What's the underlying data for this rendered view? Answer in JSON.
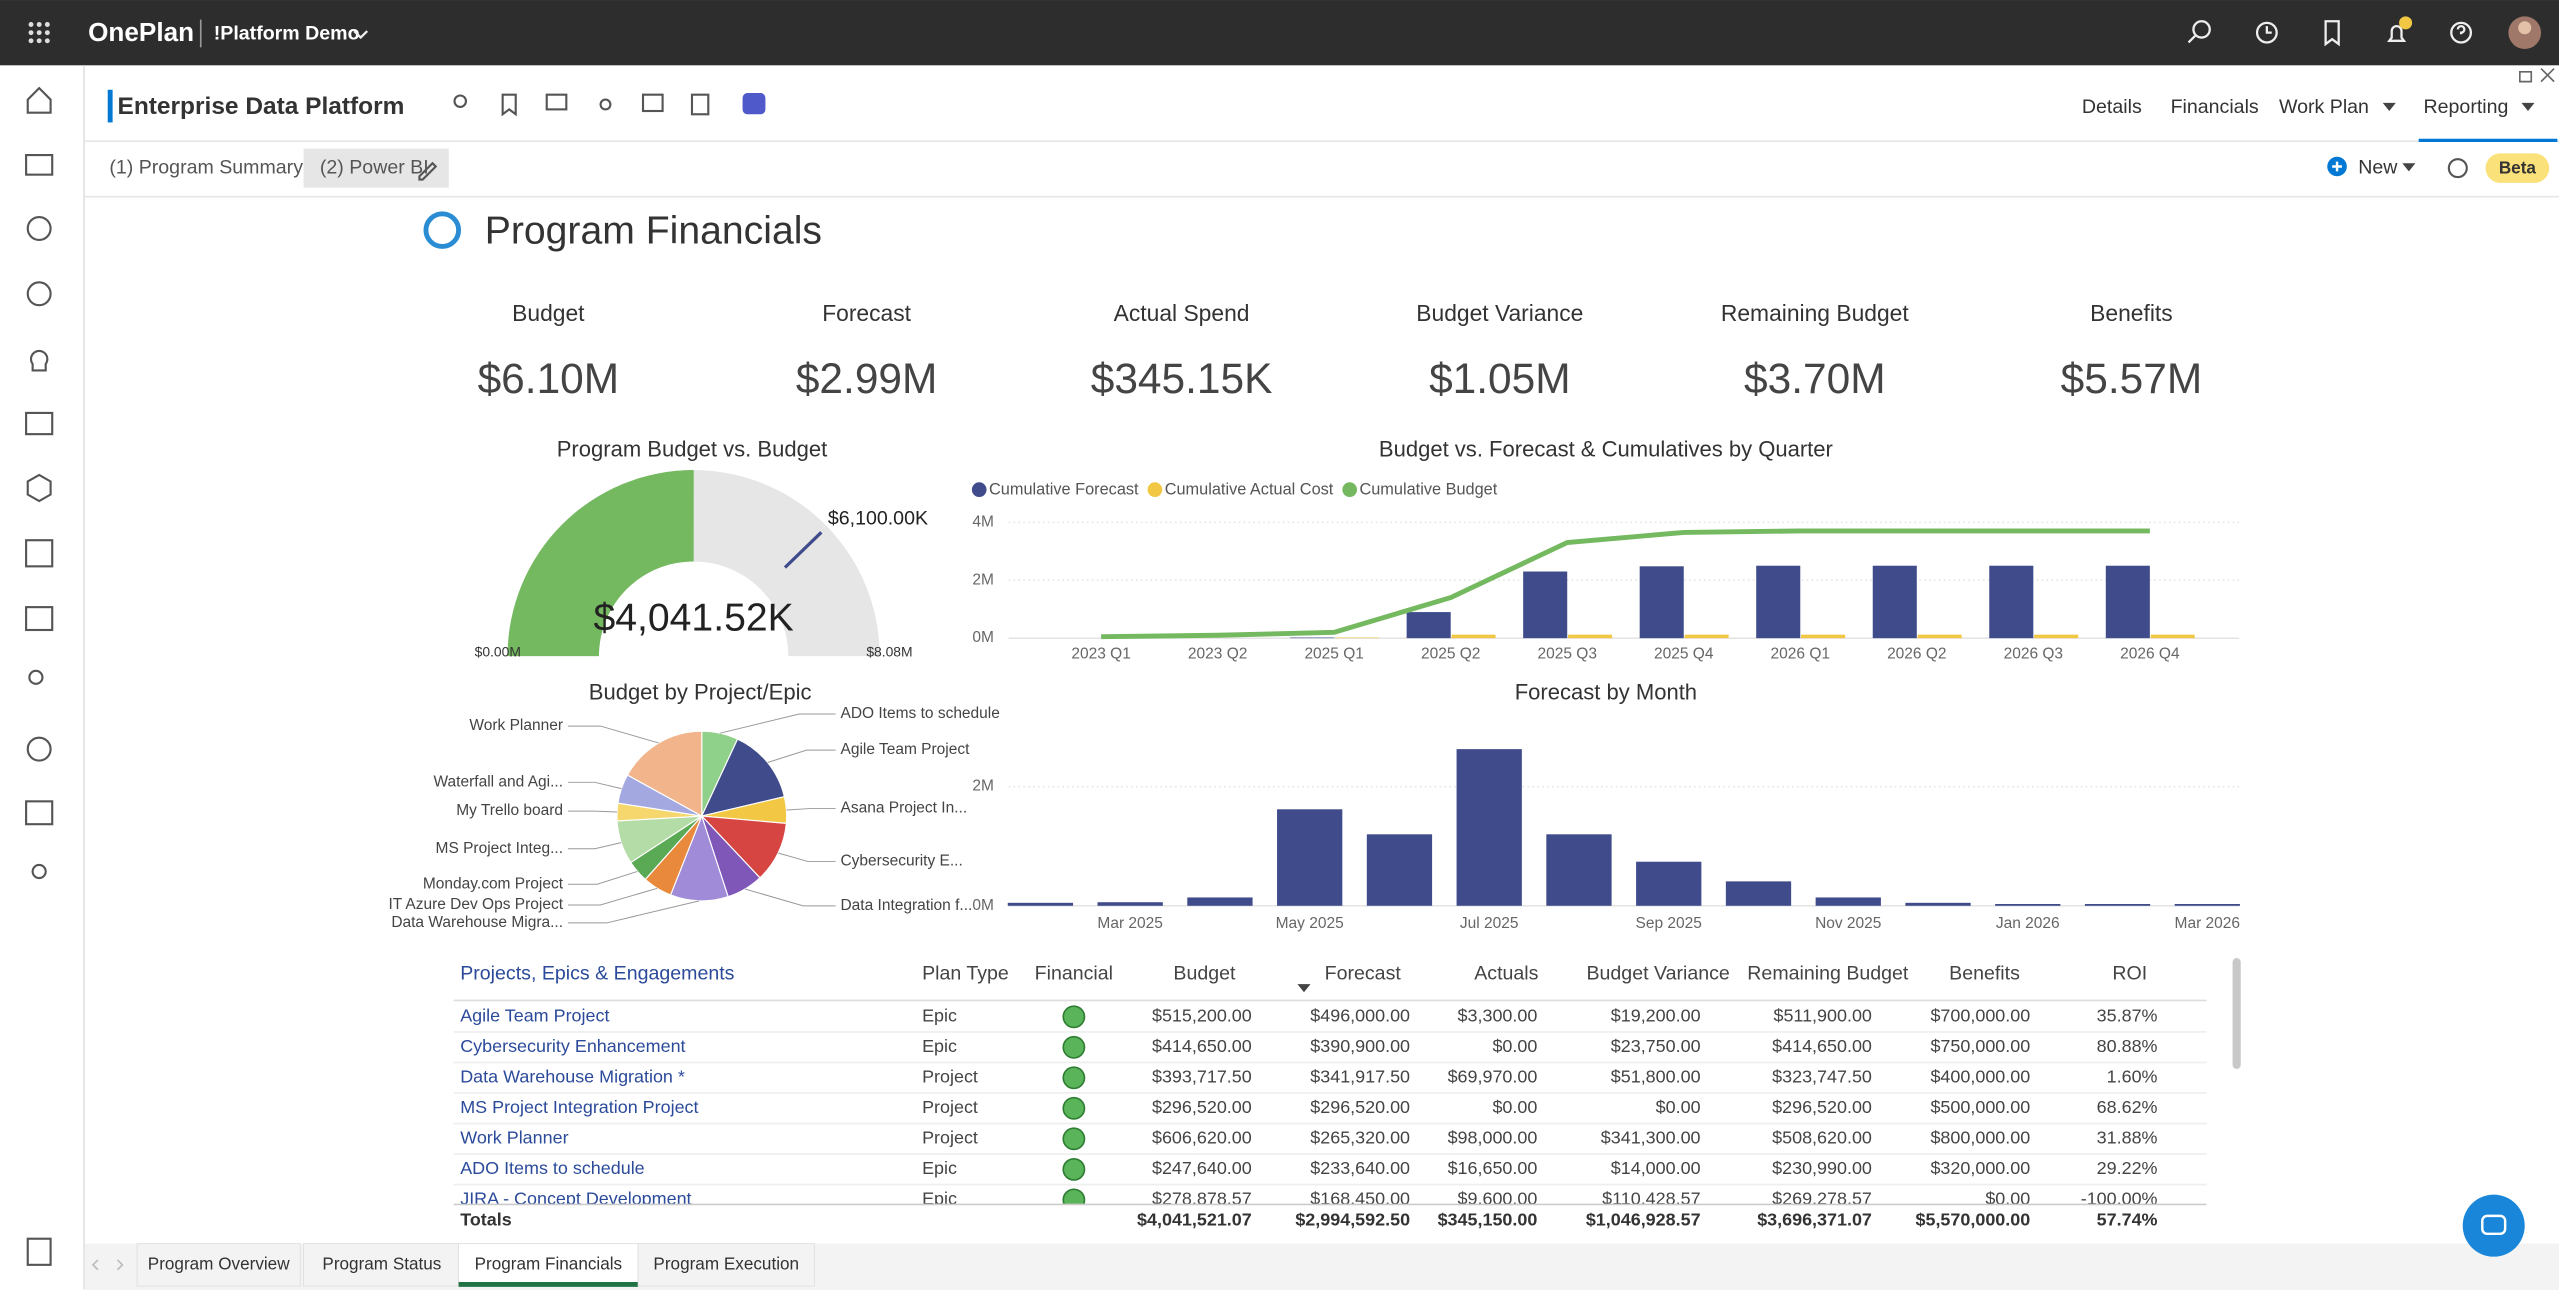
{
  "header": {
    "app": "OnePlan",
    "workspace": "!Platform Demo"
  },
  "project": {
    "title": "Enterprise Data Platform",
    "nav": [
      "Details",
      "Financials",
      "Work Plan",
      "Reporting"
    ]
  },
  "tabs": [
    "(1) Program Summary",
    "(2) Power BI"
  ],
  "toolbar": {
    "new": "New",
    "beta": "Beta"
  },
  "report": {
    "title": "Program Financials",
    "kpis": [
      {
        "label": "Budget",
        "value": "$6.10M"
      },
      {
        "label": "Forecast",
        "value": "$2.99M"
      },
      {
        "label": "Actual Spend",
        "value": "$345.15K"
      },
      {
        "label": "Budget Variance",
        "value": "$1.05M"
      },
      {
        "label": "Remaining Budget",
        "value": "$3.70M"
      },
      {
        "label": "Benefits",
        "value": "$5.57M"
      }
    ]
  },
  "chart_data": [
    {
      "type": "gauge",
      "title": "Program Budget vs. Budget",
      "value": 4041.52,
      "value_label": "$4,041.52K",
      "target": 6100,
      "target_label": "$6,100.00K",
      "min": {
        "value": 0,
        "label": "$0.00M"
      },
      "max": {
        "value": 8080,
        "label": "$8.08M"
      },
      "color": "#74b95f",
      "track_color": "#e6e6e6"
    },
    {
      "type": "combo",
      "title": "Budget vs. Forecast & Cumulatives by Quarter",
      "categories": [
        "2023 Q1",
        "2023 Q2",
        "2025 Q1",
        "2025 Q2",
        "2025 Q3",
        "2025 Q4",
        "2026 Q1",
        "2026 Q2",
        "2026 Q3",
        "2026 Q4"
      ],
      "series": [
        {
          "name": "Cumulative Forecast",
          "color": "#3f4b8a",
          "kind": "bar",
          "values": [
            0,
            0,
            0.02,
            0.9,
            2.3,
            2.48,
            2.5,
            2.5,
            2.5,
            2.5
          ]
        },
        {
          "name": "Cumulative Actual Cost",
          "color": "#f2c744",
          "kind": "bar",
          "values": [
            0,
            0,
            0.02,
            0.12,
            0.12,
            0.12,
            0.12,
            0.12,
            0.12,
            0.12
          ]
        },
        {
          "name": "Cumulative Budget",
          "color": "#74b95f",
          "kind": "line",
          "values": [
            0.05,
            0.1,
            0.2,
            1.4,
            3.3,
            3.65,
            3.7,
            3.7,
            3.7,
            3.7
          ]
        }
      ],
      "ylim": [
        0,
        4.4
      ],
      "yticks": [
        {
          "value": 0,
          "label": "0M"
        },
        {
          "value": 2,
          "label": "2M"
        },
        {
          "value": 4,
          "label": "4M"
        }
      ],
      "grid": true
    },
    {
      "type": "pie",
      "title": "Budget by Project/Epic",
      "categories": [
        "ADO Items to schedule",
        "Agile Team Project",
        "Asana Project In...",
        "Cybersecurity E...",
        "Data Integration f...",
        "Data Warehouse Migra...",
        "IT Azure Dev Ops Project",
        "Monday.com Project",
        "MS Project Integ...",
        "My Trello board",
        "Waterfall and Agi...",
        "Work Planner"
      ],
      "values": [
        247640,
        515200,
        180000,
        414650,
        250000,
        393717.5,
        200000,
        150000,
        296520,
        120000,
        200000,
        606620
      ],
      "colors": [
        "#8fd18a",
        "#3f4b8a",
        "#f2c744",
        "#d64541",
        "#7e57b8",
        "#a08bd8",
        "#e8893c",
        "#5aaa55",
        "#b4dca6",
        "#f5d76e",
        "#a3a8e0",
        "#f2b48a"
      ]
    },
    {
      "type": "bar",
      "title": "Forecast by Month",
      "categories": [
        null,
        "Mar 2025",
        null,
        "May 2025",
        null,
        "Jul 2025",
        null,
        "Sep 2025",
        null,
        "Nov 2025",
        null,
        "Jan 2026",
        null,
        "Mar 2026"
      ],
      "values": [
        0.05,
        0.06,
        0.14,
        1.62,
        1.2,
        2.63,
        1.2,
        0.74,
        0.41,
        0.14,
        0.05,
        0.03,
        0.03,
        0.03
      ],
      "color": "#3f4b8a",
      "ylim": [
        0,
        2.7
      ],
      "yticks": [
        {
          "value": 0,
          "label": "0M"
        },
        {
          "value": 2,
          "label": "2M"
        }
      ],
      "grid": true
    }
  ],
  "table": {
    "columns": [
      "Projects, Epics & Engagements",
      "Plan Type",
      "Financial",
      "Budget",
      "Forecast",
      "Actuals",
      "Budget Variance",
      "Remaining Budget",
      "Benefits",
      "ROI"
    ],
    "rows": [
      [
        "Agile Team Project",
        "Epic",
        "$515,200.00",
        "$496,000.00",
        "$3,300.00",
        "$19,200.00",
        "$511,900.00",
        "$700,000.00",
        "35.87%"
      ],
      [
        "Cybersecurity Enhancement",
        "Epic",
        "$414,650.00",
        "$390,900.00",
        "$0.00",
        "$23,750.00",
        "$414,650.00",
        "$750,000.00",
        "80.88%"
      ],
      [
        "Data Warehouse Migration *",
        "Project",
        "$393,717.50",
        "$341,917.50",
        "$69,970.00",
        "$51,800.00",
        "$323,747.50",
        "$400,000.00",
        "1.60%"
      ],
      [
        "MS Project Integration Project",
        "Project",
        "$296,520.00",
        "$296,520.00",
        "$0.00",
        "$0.00",
        "$296,520.00",
        "$500,000.00",
        "68.62%"
      ],
      [
        "Work Planner",
        "Project",
        "$606,620.00",
        "$265,320.00",
        "$98,000.00",
        "$341,300.00",
        "$508,620.00",
        "$800,000.00",
        "31.88%"
      ],
      [
        "ADO Items to schedule",
        "Epic",
        "$247,640.00",
        "$233,640.00",
        "$16,650.00",
        "$14,000.00",
        "$230,990.00",
        "$320,000.00",
        "29.22%"
      ],
      [
        "JIRA - Concept Development",
        "Epic",
        "$278,878.57",
        "$168,450.00",
        "$9,600.00",
        "$110,428.57",
        "$269,278.57",
        "$0.00",
        "-100.00%"
      ]
    ],
    "totals": [
      "Totals",
      "$4,041,521.07",
      "$2,994,592.50",
      "$345,150.00",
      "$1,046,928.57",
      "$3,696,371.07",
      "$5,570,000.00",
      "57.74%"
    ]
  },
  "page_tabs": [
    "Program Overview",
    "Program Status",
    "Program Financials",
    "Program Execution"
  ]
}
